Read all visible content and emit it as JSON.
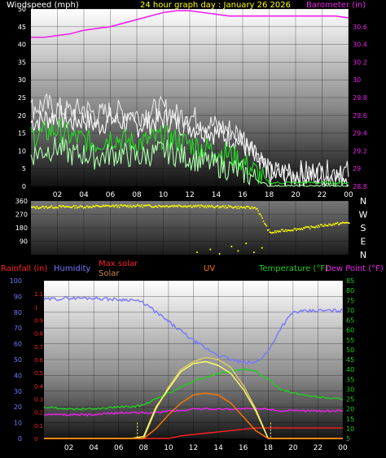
{
  "chart_data": [
    {
      "type": "line",
      "title": "24 hour graph day : January 26 2026",
      "left_axis_label": "Windspeed (mph)",
      "right_axis_label": "Barometer (in)",
      "x_ticks": [
        "02",
        "04",
        "06",
        "08",
        "10",
        "12",
        "14",
        "16",
        "18",
        "20",
        "22",
        "00"
      ],
      "ylim_left": [
        0,
        50
      ],
      "y_ticks_left": [
        "0",
        "5",
        "10",
        "15",
        "20",
        "25",
        "30",
        "35",
        "40",
        "45",
        "50"
      ],
      "ylim_right": [
        28.8,
        30.8
      ],
      "y_ticks_right": [
        "28.8",
        "29",
        "29.2",
        "29.4",
        "29.6",
        "29.8",
        "30",
        "30.2",
        "30.4",
        "30.6"
      ],
      "hours": [
        0,
        1,
        2,
        3,
        4,
        5,
        6,
        7,
        8,
        9,
        10,
        11,
        12,
        13,
        14,
        15,
        16,
        17,
        18,
        19,
        20,
        21,
        22,
        23,
        24
      ],
      "series": [
        {
          "color": "#ffffff",
          "axis": "left",
          "values": [
            18,
            19,
            20,
            18,
            19,
            17,
            19,
            18,
            17,
            18,
            19,
            18,
            17,
            16,
            15,
            14,
            12,
            8,
            3,
            3,
            3,
            3,
            3,
            3,
            3
          ]
        },
        {
          "color": "#e8e8e8",
          "axis": "left",
          "values": [
            22,
            23,
            22,
            21,
            22,
            20,
            21,
            21,
            20,
            21,
            22,
            20,
            20,
            18,
            17,
            16,
            14,
            10,
            4,
            4,
            4,
            4,
            4,
            4,
            4
          ]
        },
        {
          "color": "#22dd22",
          "axis": "left",
          "values": [
            14,
            15,
            16,
            14,
            13,
            12,
            14,
            13,
            12,
            13,
            14,
            13,
            12,
            11,
            10,
            9,
            7,
            4,
            1,
            1,
            1,
            1,
            1,
            1,
            1
          ]
        },
        {
          "color": "#aaffaa",
          "axis": "left",
          "values": [
            9,
            10,
            11,
            9,
            9,
            8,
            9,
            9,
            8,
            9,
            10,
            9,
            8,
            7,
            6,
            5,
            4,
            2,
            0,
            0,
            0,
            0,
            0,
            0,
            0
          ]
        },
        {
          "color": "#ee22ee",
          "axis": "right",
          "values": [
            30.48,
            30.48,
            30.5,
            30.52,
            30.56,
            30.58,
            30.6,
            30.64,
            30.68,
            30.72,
            30.76,
            30.78,
            30.78,
            30.76,
            30.74,
            30.72,
            30.72,
            30.72,
            30.72,
            30.72,
            30.72,
            30.72,
            30.72,
            30.72,
            30.7
          ]
        }
      ]
    },
    {
      "type": "scatter",
      "ylim": [
        0,
        360
      ],
      "y_ticks": [
        "90",
        "180",
        "270",
        "360"
      ],
      "compass_labels": [
        "N",
        "W",
        "S",
        "E",
        "N"
      ],
      "series": [
        {
          "color": "#ffff00",
          "x": [
            0,
            1,
            2,
            3,
            4,
            5,
            6,
            7,
            8,
            9,
            10,
            11,
            12,
            13,
            14,
            15,
            16,
            17,
            18,
            19,
            20,
            21,
            22,
            23,
            24
          ],
          "values": [
            320,
            322,
            325,
            325,
            325,
            328,
            330,
            330,
            332,
            330,
            330,
            332,
            330,
            328,
            325,
            325,
            320,
            318,
            150,
            165,
            175,
            185,
            200,
            210,
            220
          ]
        },
        {
          "color": "#ffff00",
          "x": [
            12.5,
            13.5,
            14.2,
            15.1,
            15.6,
            16.2,
            16.8,
            17.4
          ],
          "values": [
            20,
            40,
            10,
            60,
            30,
            80,
            20,
            50
          ]
        }
      ]
    },
    {
      "type": "line",
      "legend": [
        {
          "label": "Rainfall (in)",
          "color": "#ff2020"
        },
        {
          "label": "Humidity",
          "color": "#7777ff"
        },
        {
          "label": "Max solar",
          "color": "#ff2020"
        },
        {
          "label": "Solar",
          "color": "#cc8844"
        },
        {
          "label": "UV",
          "color": "#ff7700"
        },
        {
          "label": "Temperature (°F)",
          "color": "#22cc22"
        },
        {
          "label": "Dew Point (°F)",
          "color": "#ee22ee"
        }
      ],
      "x_ticks": [
        "02",
        "04",
        "06",
        "08",
        "10",
        "12",
        "14",
        "16",
        "18",
        "20",
        "22",
        "00"
      ],
      "ylim_rain": [
        0,
        1.2
      ],
      "rain_ticks": [
        "0",
        "0.1",
        "0.2",
        "0.3",
        "0.4",
        "0.5",
        "0.6",
        "0.7",
        "0.8",
        "0.9",
        "1",
        "1.1"
      ],
      "ylim_humidity": [
        0,
        100
      ],
      "humidity_ticks": [
        "0",
        "10",
        "20",
        "30",
        "40",
        "50",
        "60",
        "70",
        "80",
        "90",
        "100"
      ],
      "ylim_temp": [
        5,
        85
      ],
      "temp_ticks": [
        "5",
        "10",
        "15",
        "20",
        "25",
        "30",
        "35",
        "40",
        "45",
        "50",
        "55",
        "60",
        "65",
        "70",
        "75",
        "80",
        "85"
      ],
      "hours": [
        0,
        2,
        4,
        6,
        7,
        8,
        9,
        10,
        11,
        12,
        13,
        14,
        15,
        16,
        17,
        18,
        19,
        20,
        22,
        24
      ],
      "series": [
        {
          "name": "Humidity",
          "axis": "humidity",
          "color": "#7777ff",
          "values": [
            88,
            89,
            89,
            88,
            88,
            86,
            80,
            74,
            68,
            62,
            57,
            53,
            50,
            48,
            48,
            55,
            70,
            80,
            81,
            81
          ]
        },
        {
          "name": "Temperature",
          "axis": "temp",
          "color": "#22cc22",
          "values": [
            21,
            20,
            20,
            21,
            21,
            22,
            25,
            28,
            31,
            34,
            36,
            38,
            39,
            40,
            39,
            35,
            30,
            28,
            26,
            25
          ]
        },
        {
          "name": "Dew Point",
          "axis": "temp",
          "color": "#ee22ee",
          "values": [
            17,
            17,
            17,
            18,
            18,
            18,
            18,
            19,
            19,
            20,
            20,
            20,
            20,
            20,
            20,
            20,
            19,
            19,
            19,
            19
          ]
        },
        {
          "name": "Rainfall",
          "axis": "rain",
          "color": "#ff2020",
          "values": [
            0,
            0,
            0,
            0,
            0,
            0,
            0,
            0,
            0.02,
            0.03,
            0.04,
            0.05,
            0.06,
            0.07,
            0.08,
            0.08,
            0.08,
            0.08,
            0.08,
            0.08
          ]
        },
        {
          "name": "Max solar",
          "axis": "temp",
          "color": "#ddcc66",
          "values": [
            5,
            5,
            5,
            5,
            5,
            5,
            20,
            31,
            40,
            44,
            46,
            45,
            41,
            32,
            20,
            5,
            5,
            5,
            5,
            5
          ]
        },
        {
          "name": "Solar",
          "axis": "temp",
          "color": "#ffff66",
          "values": [
            5,
            5,
            5,
            5,
            5,
            6,
            21,
            30,
            39,
            43,
            44,
            42,
            38,
            30,
            19,
            5,
            5,
            5,
            5,
            5
          ]
        },
        {
          "name": "UV",
          "axis": "temp",
          "color": "#ff7700",
          "values": [
            5,
            5,
            5,
            5,
            5,
            5,
            10,
            17,
            23,
            27,
            28,
            27,
            23,
            16,
            9,
            5,
            5,
            5,
            5,
            5
          ]
        }
      ]
    }
  ]
}
